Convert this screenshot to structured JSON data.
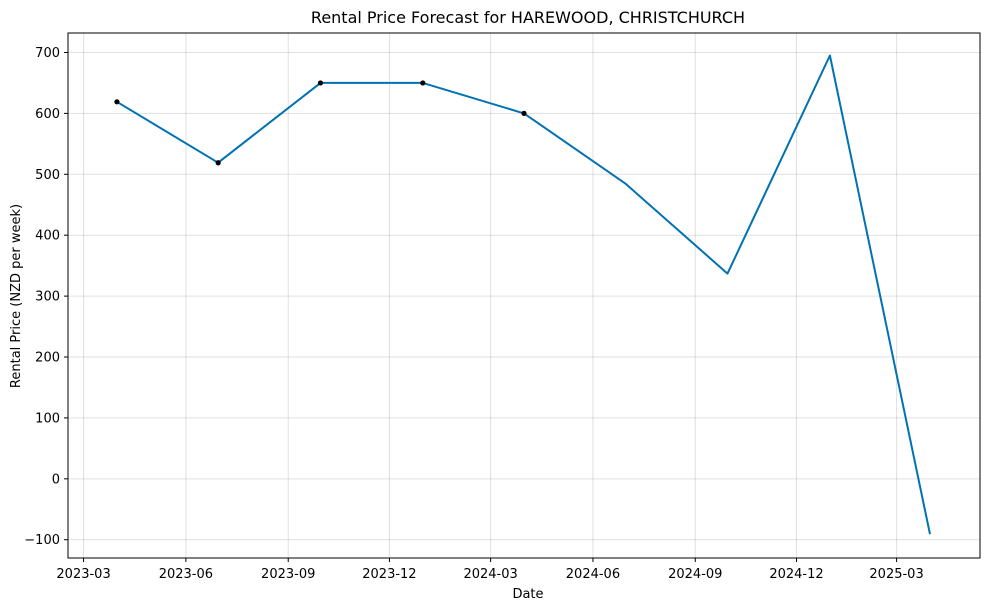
{
  "chart_data": {
    "type": "line",
    "title": "Rental Price Forecast for HAREWOOD, CHRISTCHURCH",
    "xlabel": "Date",
    "ylabel": "Rental Price (NZD per week)",
    "x_ticks": [
      "2023-03",
      "2023-06",
      "2023-09",
      "2023-12",
      "2024-03",
      "2024-06",
      "2024-09",
      "2024-12",
      "2025-03"
    ],
    "y_ticks": [
      -100,
      0,
      100,
      200,
      300,
      400,
      500,
      600,
      700
    ],
    "xlim": [
      "2023-02-15",
      "2025-05-15"
    ],
    "ylim": [
      -130,
      732
    ],
    "grid": true,
    "series": [
      {
        "color": "#0072B2",
        "x": [
          "2023-03-31",
          "2023-06-30",
          "2023-09-30",
          "2023-12-31",
          "2024-03-31",
          "2024-06-30",
          "2024-09-30",
          "2024-12-31",
          "2025-03-31"
        ],
        "values": [
          619,
          519,
          650,
          650,
          600,
          485,
          337,
          695,
          -91
        ]
      }
    ],
    "observed_points": {
      "color": "#000000",
      "x": [
        "2023-03-31",
        "2023-06-30",
        "2023-09-30",
        "2023-12-31",
        "2024-03-31"
      ],
      "values": [
        619,
        519,
        650,
        650,
        600
      ]
    }
  }
}
